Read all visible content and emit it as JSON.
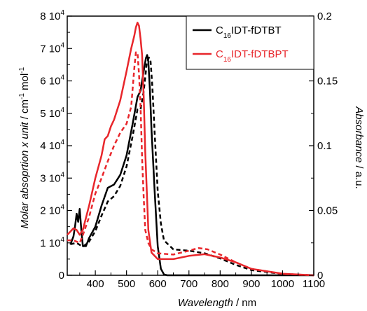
{
  "chart_data": {
    "type": "line",
    "xlabel": {
      "italic": "Wavelength",
      "unit": " / nm"
    },
    "ylabel_left": {
      "italic": "Molar absoprtion x unit",
      "unit": " / cm",
      "sup1": "-1",
      "unit2": " mol",
      "sup2": "-1"
    },
    "ylabel_right": {
      "italic": "Absorbance",
      "unit": " / a.u."
    },
    "xlim": [
      310,
      1100
    ],
    "ylim_left": [
      0,
      80000
    ],
    "ylim_right": [
      0,
      0.2
    ],
    "x_ticks": [
      400,
      500,
      600,
      700,
      800,
      900,
      1000,
      1100
    ],
    "x_tick_labels": [
      "400",
      "500",
      "600",
      "700",
      "800",
      "900",
      "1000",
      "1100"
    ],
    "y_left_ticks": [
      0,
      10000,
      20000,
      30000,
      40000,
      50000,
      60000,
      70000,
      80000
    ],
    "y_left_tick_labels": [
      {
        "base": "0",
        "exp": ""
      },
      {
        "base": "1 10",
        "exp": "4"
      },
      {
        "base": "2 10",
        "exp": "4"
      },
      {
        "base": "3 10",
        "exp": "4"
      },
      {
        "base": "4 10",
        "exp": "4"
      },
      {
        "base": "5 10",
        "exp": "4"
      },
      {
        "base": "6 10",
        "exp": "4"
      },
      {
        "base": "7 10",
        "exp": "4"
      },
      {
        "base": "8 10",
        "exp": "4"
      }
    ],
    "y_right_ticks": [
      0,
      0.05,
      0.1,
      0.15,
      0.2
    ],
    "y_right_tick_labels": [
      "0",
      "0.05",
      "0.1",
      "0.15",
      "0.2"
    ],
    "legend": {
      "placement": "top-right",
      "entries": [
        {
          "prefix": "C",
          "sub": "16",
          "suffix": "IDT-fDTBT",
          "color": "#000000",
          "text_color": "#000000"
        },
        {
          "prefix": "C",
          "sub": "16",
          "suffix": "IDT-fDTBPT",
          "color": "#e8262b",
          "text_color": "#e8262b"
        }
      ]
    },
    "series": [
      {
        "legend_index": 0,
        "color": "#000000",
        "style": "solid",
        "axis": "left",
        "x": [
          320,
          330,
          335,
          340,
          345,
          350,
          355,
          360,
          370,
          380,
          400,
          420,
          440,
          460,
          480,
          500,
          520,
          535,
          545,
          555,
          562,
          566,
          570,
          575,
          580,
          590,
          600,
          610,
          620,
          630,
          650,
          700,
          1100
        ],
        "y": [
          9500,
          12000,
          15000,
          19000,
          16500,
          20500,
          14000,
          9000,
          9000,
          11500,
          15000,
          21500,
          27000,
          28000,
          31000,
          37000,
          47000,
          55000,
          57000,
          63000,
          67000,
          68000,
          66000,
          57000,
          45000,
          26000,
          9000,
          2000,
          300,
          0,
          0,
          0,
          0
        ]
      },
      {
        "legend_index": 0,
        "color": "#000000",
        "style": "dashed",
        "axis": "right",
        "x": [
          320,
          340,
          360,
          380,
          400,
          420,
          440,
          460,
          480,
          500,
          520,
          535,
          545,
          555,
          565,
          572,
          577,
          583,
          590,
          600,
          610,
          620,
          650,
          700,
          750,
          800,
          850,
          900,
          1000,
          1100
        ],
        "y": [
          0.024,
          0.025,
          0.022,
          0.026,
          0.034,
          0.046,
          0.057,
          0.061,
          0.069,
          0.084,
          0.108,
          0.128,
          0.128,
          0.142,
          0.164,
          0.168,
          0.165,
          0.145,
          0.11,
          0.065,
          0.04,
          0.027,
          0.02,
          0.019,
          0.017,
          0.013,
          0.008,
          0.004,
          0.001,
          0
        ]
      },
      {
        "legend_index": 1,
        "color": "#e8262b",
        "style": "solid",
        "axis": "left",
        "x": [
          310,
          320,
          330,
          340,
          350,
          360,
          380,
          400,
          420,
          430,
          440,
          450,
          460,
          480,
          500,
          515,
          525,
          530,
          535,
          540,
          545,
          550,
          555,
          560,
          570,
          580,
          600,
          650,
          700,
          750,
          800,
          850,
          900,
          1000,
          1100
        ],
        "y": [
          12500,
          13500,
          14500,
          14000,
          12500,
          14000,
          21500,
          30000,
          37000,
          42000,
          43000,
          46000,
          48000,
          54000,
          63000,
          70000,
          74000,
          76500,
          78000,
          77000,
          73000,
          68000,
          55000,
          38000,
          14000,
          7000,
          5000,
          5000,
          6000,
          6500,
          5500,
          4000,
          2000,
          500,
          0
        ]
      },
      {
        "legend_index": 1,
        "color": "#e8262b",
        "style": "dashed",
        "axis": "right",
        "x": [
          310,
          330,
          350,
          360,
          380,
          400,
          420,
          440,
          460,
          480,
          500,
          515,
          525,
          530,
          535,
          540,
          545,
          550,
          555,
          560,
          570,
          580,
          600,
          650,
          700,
          730,
          760,
          800,
          850,
          900,
          1000,
          1100
        ],
        "y": [
          0.027,
          0.027,
          0.025,
          0.031,
          0.045,
          0.063,
          0.075,
          0.088,
          0.1,
          0.11,
          0.117,
          0.13,
          0.16,
          0.172,
          0.172,
          0.155,
          0.13,
          0.09,
          0.06,
          0.035,
          0.025,
          0.02,
          0.017,
          0.016,
          0.019,
          0.021,
          0.02,
          0.016,
          0.01,
          0.005,
          0.001,
          0
        ]
      }
    ]
  }
}
